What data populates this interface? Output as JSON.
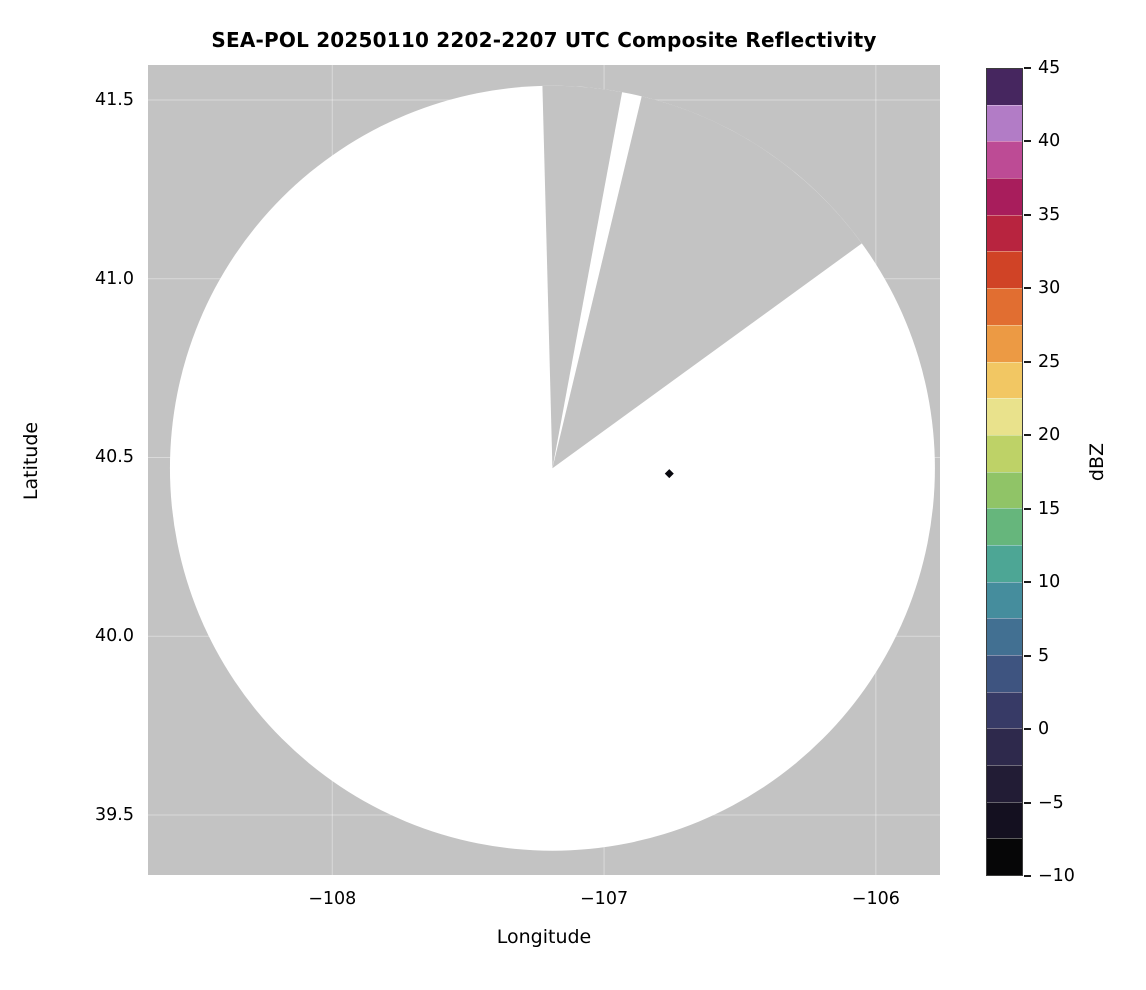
{
  "chart_data": {
    "type": "heatmap",
    "title": "SEA-POL 20250110 2202-2207 UTC Composite Reflectivity",
    "xlabel": "Longitude",
    "ylabel": "Latitude",
    "xlim": [
      -108.678,
      -105.764
    ],
    "ylim": [
      39.332,
      41.598
    ],
    "xticks": [
      {
        "value": -108,
        "label": "−108"
      },
      {
        "value": -107,
        "label": "−107"
      },
      {
        "value": -106,
        "label": "−106"
      }
    ],
    "yticks": [
      {
        "value": 41.5,
        "label": "41.5"
      },
      {
        "value": 41.0,
        "label": "41.0"
      },
      {
        "value": 40.5,
        "label": "40.5"
      },
      {
        "value": 40.0,
        "label": "40.0"
      },
      {
        "value": 39.5,
        "label": "39.5"
      }
    ],
    "grid": true,
    "grid_color": "rgba(255,255,255,0.38)",
    "nodata_color": "#c3c3c3",
    "coverage_color": "#ffffff",
    "coverage": {
      "description": "Circular radar scan coverage area (white = scanned, no echo); gray = no data, including two blocked azimuth sectors",
      "center_lon": -107.19,
      "center_lat": 40.47,
      "radius_deg_lat": 1.07,
      "missing_sectors_az_deg": [
        {
          "from": -1.5,
          "to": 10.5
        },
        {
          "from": 13.5,
          "to": 54.0
        }
      ]
    },
    "echo_points": [
      {
        "lon": -106.76,
        "lat": 40.455,
        "dbz": -10,
        "color": "#08080f",
        "shape": "diamond"
      }
    ],
    "colorbar": {
      "label": "dBZ",
      "min": -10,
      "max": 45,
      "segment_step": 2.5,
      "ticks": [
        {
          "value": 45,
          "label": "45"
        },
        {
          "value": 40,
          "label": "40"
        },
        {
          "value": 35,
          "label": "35"
        },
        {
          "value": 30,
          "label": "30"
        },
        {
          "value": 25,
          "label": "25"
        },
        {
          "value": 20,
          "label": "20"
        },
        {
          "value": 15,
          "label": "15"
        },
        {
          "value": 10,
          "label": "10"
        },
        {
          "value": 5,
          "label": "5"
        },
        {
          "value": 0,
          "label": "0"
        },
        {
          "value": -5,
          "label": "−5"
        },
        {
          "value": -10,
          "label": "−10"
        }
      ],
      "segments_bottom_to_top": [
        "#060607",
        "#141020",
        "#221c35",
        "#2e294c",
        "#373a66",
        "#3e5480",
        "#427092",
        "#458d9d",
        "#4da695",
        "#66b67c",
        "#90c467",
        "#bed267",
        "#e9e28c",
        "#f2c763",
        "#ec9a44",
        "#e16e31",
        "#d04326",
        "#b8243f",
        "#a81d5c",
        "#bd4b95",
        "#b27cc6",
        "#46265f"
      ]
    }
  },
  "layout_note": "Static matplotlib-style radar reflectivity figure; no interactive controls visible"
}
